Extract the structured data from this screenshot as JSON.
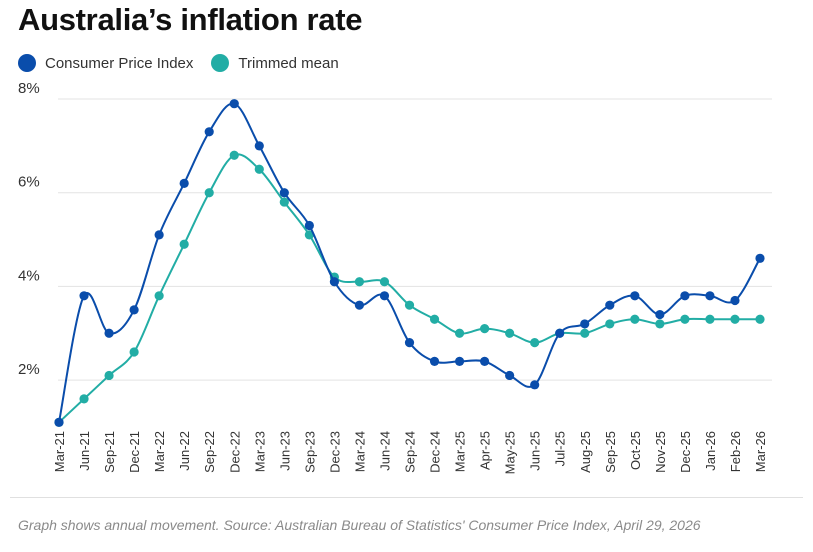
{
  "title": "Australia’s inflation rate",
  "footnote": "Graph shows annual movement. Source:  Australian Bureau of Statistics' Consumer Price Index, April 29, 2026",
  "colors": {
    "cpi": "#0a4dab",
    "trimmed": "#22ada5",
    "grid": "#e3e3e3"
  },
  "chart_data": {
    "type": "line",
    "title": "Australia’s inflation rate",
    "categories": [
      "Mar-21",
      "Jun-21",
      "Sep-21",
      "Dec-21",
      "Mar-22",
      "Jun-22",
      "Sep-22",
      "Dec-22",
      "Mar-23",
      "Jun-23",
      "Sep-23",
      "Dec-23",
      "Mar-24",
      "Jun-24",
      "Sep-24",
      "Dec-24",
      "Mar-25",
      "Apr-25",
      "May-25",
      "Jun-25",
      "Jul-25",
      "Aug-25",
      "Sep-25",
      "Oct-25",
      "Nov-25",
      "Dec-25",
      "Jan-26",
      "Feb-26",
      "Mar-26"
    ],
    "series": [
      {
        "name": "Consumer Price Index",
        "color": "#0a4dab",
        "values": [
          1.1,
          3.8,
          3.0,
          3.5,
          5.1,
          6.2,
          7.3,
          7.9,
          7.0,
          6.0,
          5.3,
          4.1,
          3.6,
          3.8,
          2.8,
          2.4,
          2.4,
          2.4,
          2.1,
          1.9,
          3.0,
          3.2,
          3.6,
          3.8,
          3.4,
          3.8,
          3.8,
          3.7,
          4.6
        ]
      },
      {
        "name": "Trimmed mean",
        "color": "#22ada5",
        "values": [
          1.1,
          1.6,
          2.1,
          2.6,
          3.8,
          4.9,
          6.0,
          6.8,
          6.5,
          5.8,
          5.1,
          4.2,
          4.1,
          4.1,
          3.6,
          3.3,
          3.0,
          3.1,
          3.0,
          2.8,
          3.0,
          3.0,
          3.2,
          3.3,
          3.2,
          3.3,
          3.3,
          3.3,
          3.3
        ]
      }
    ],
    "yticks": [
      2,
      4,
      6,
      8
    ],
    "ytick_labels": [
      "2%",
      "4%",
      "6%",
      "8%"
    ],
    "ylim": [
      1.0,
      8.0
    ],
    "grid": true,
    "legend": "top-left",
    "xlabel": "",
    "ylabel": ""
  }
}
